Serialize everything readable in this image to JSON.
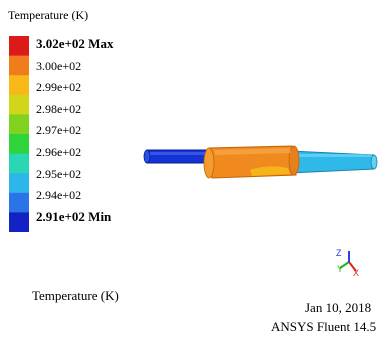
{
  "legend": {
    "title": "Temperature  (K)",
    "colors": [
      "#dd1a1a",
      "#f07c1c",
      "#f7b818",
      "#d2d51a",
      "#7fd31e",
      "#2fd33c",
      "#29d7b4",
      "#2eb6ea",
      "#2b74e8",
      "#1322c4"
    ],
    "ticks": [
      {
        "label": "3.02e+02 Max",
        "bold": true
      },
      {
        "label": "3.00e+02",
        "bold": false
      },
      {
        "label": "2.99e+02",
        "bold": false
      },
      {
        "label": "2.98e+02",
        "bold": false
      },
      {
        "label": "2.97e+02",
        "bold": false
      },
      {
        "label": "2.96e+02",
        "bold": false
      },
      {
        "label": "2.95e+02",
        "bold": false
      },
      {
        "label": "2.94e+02",
        "bold": false
      },
      {
        "label": "2.91e+02 Min",
        "bold": true
      }
    ]
  },
  "chart_data": {
    "type": "heatmap",
    "variable": "Temperature",
    "unit": "K",
    "min": 291,
    "max": 302,
    "scale_ticks": [
      302,
      300,
      299,
      298,
      297,
      296,
      295,
      294,
      291
    ],
    "regions": [
      {
        "part": "left pipe",
        "color": "#1432d6"
      },
      {
        "part": "middle section",
        "color": "#f08a1f"
      },
      {
        "part": "right pipe",
        "color": "#2fb9e8"
      }
    ]
  },
  "axes": {
    "y": "Y",
    "z": "Z",
    "x": "X"
  },
  "footer": {
    "label": "Temperature (K)",
    "date": "Jan 10, 2018",
    "product": "ANSYS Fluent 14.5"
  }
}
